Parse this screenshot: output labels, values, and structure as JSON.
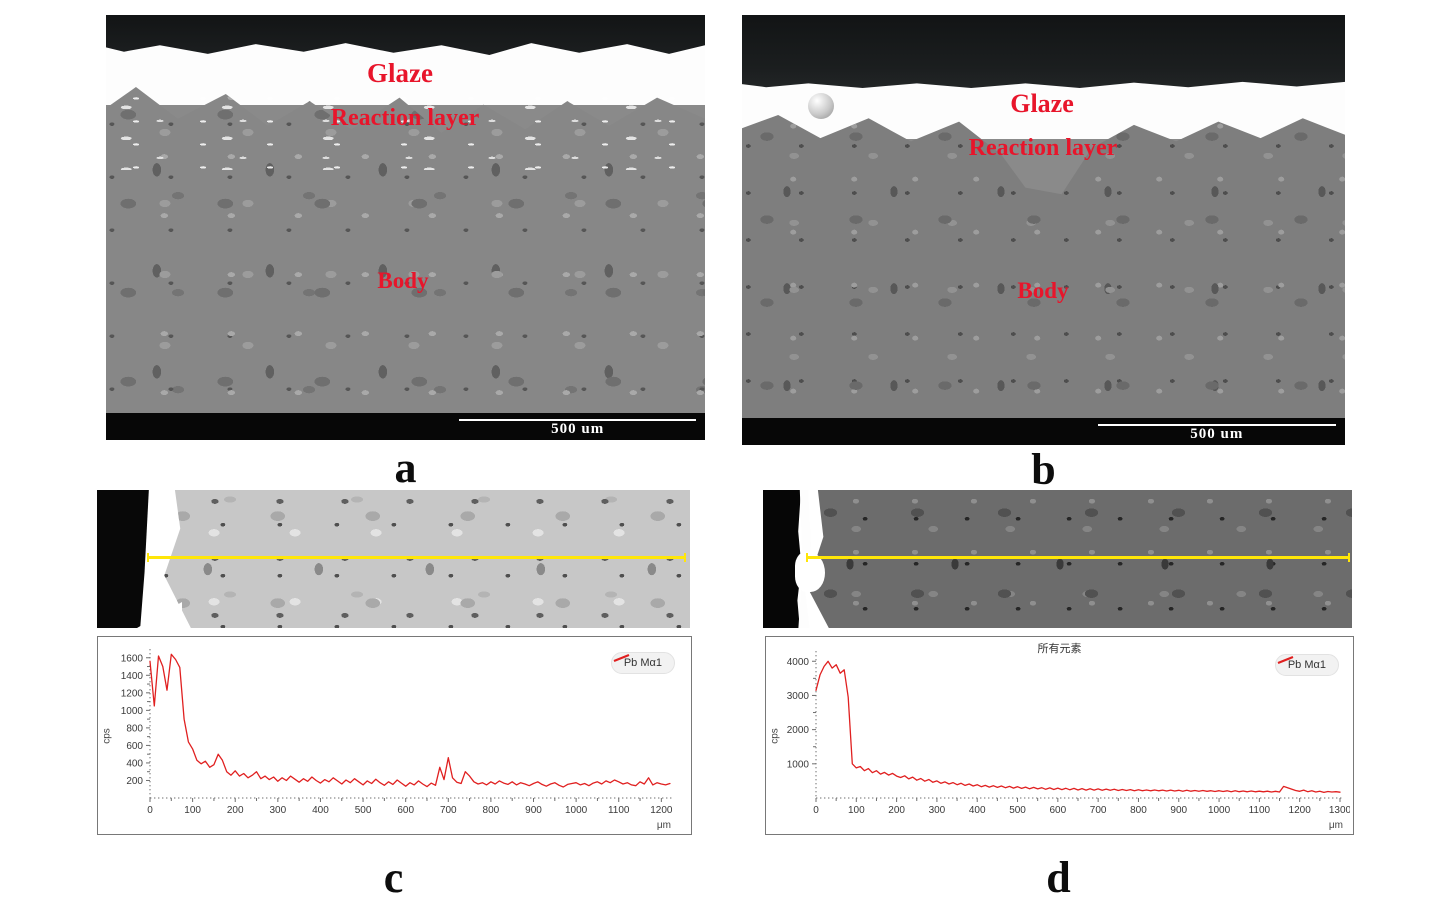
{
  "colors": {
    "annotation_red": "#e8152b",
    "series_red": "#e02020",
    "scan_line_yellow": "#ffe608",
    "scale_bar_bg": "#070707",
    "chart_border": "#787878"
  },
  "panels": {
    "a": {
      "label": "a",
      "glaze": "Glaze",
      "reaction_layer": "Reaction layer",
      "body": "Body",
      "scale_text": "500 um"
    },
    "b": {
      "label": "b",
      "glaze": "Glaze",
      "reaction_layer": "Reaction layer",
      "body": "Body",
      "scale_text": "500 um"
    },
    "c": {
      "label": "c"
    },
    "d": {
      "label": "d"
    }
  },
  "charts": {
    "c": {
      "ylabel": "cps",
      "x_unit": "μm",
      "legend_label": "Pb Mα1",
      "title": ""
    },
    "d": {
      "ylabel": "cps",
      "x_unit": "μm",
      "legend_label": "Pb Mα1",
      "title": "所有元素"
    }
  },
  "chart_data": [
    {
      "id": "c",
      "type": "line",
      "title": "",
      "xlabel": "μm",
      "ylabel": "cps",
      "xlim": [
        0,
        1225
      ],
      "ylim": [
        0,
        1700
      ],
      "xticks": [
        0,
        100,
        200,
        300,
        400,
        500,
        600,
        700,
        800,
        900,
        1000,
        1100,
        1200
      ],
      "yticks": [
        200,
        400,
        600,
        800,
        1000,
        1200,
        1400,
        1600
      ],
      "grid": false,
      "legend_position": "top-right",
      "x_start": 0,
      "x_step": 10,
      "series": [
        {
          "name": "Pb Mα1",
          "color": "#e02020",
          "values": [
            1560,
            1050,
            1620,
            1500,
            1230,
            1640,
            1580,
            1490,
            900,
            640,
            560,
            430,
            390,
            420,
            350,
            380,
            500,
            430,
            300,
            260,
            310,
            250,
            280,
            230,
            260,
            300,
            220,
            250,
            210,
            240,
            190,
            230,
            200,
            250,
            215,
            180,
            220,
            190,
            240,
            200,
            170,
            210,
            185,
            230,
            195,
            160,
            205,
            175,
            220,
            185,
            150,
            195,
            165,
            215,
            175,
            145,
            185,
            155,
            205,
            170,
            135,
            175,
            150,
            195,
            160,
            130,
            170,
            145,
            350,
            210,
            460,
            230,
            180,
            165,
            300,
            250,
            185,
            160,
            175,
            150,
            185,
            160,
            195,
            170,
            155,
            185,
            150,
            175,
            160,
            140,
            165,
            185,
            155,
            135,
            160,
            175,
            145,
            125,
            155,
            165,
            175,
            150,
            165,
            140,
            170,
            185,
            160,
            195,
            175,
            205,
            185,
            160,
            175,
            150,
            140,
            185,
            160,
            230,
            150,
            175,
            160,
            150,
            165
          ]
        }
      ]
    },
    {
      "id": "d",
      "type": "line",
      "title": "所有元素",
      "xlabel": "μm",
      "ylabel": "cps",
      "xlim": [
        0,
        1305
      ],
      "ylim": [
        0,
        4300
      ],
      "xticks": [
        0,
        100,
        200,
        300,
        400,
        500,
        600,
        700,
        800,
        900,
        1000,
        1100,
        1200,
        1300
      ],
      "yticks": [
        1000,
        2000,
        3000,
        4000
      ],
      "grid": false,
      "legend_position": "top-right",
      "x_start": 0,
      "x_step": 10,
      "series": [
        {
          "name": "Pb Mα1",
          "color": "#e02020",
          "values": [
            3150,
            3600,
            3850,
            4000,
            3800,
            3900,
            3650,
            3750,
            2950,
            1000,
            880,
            920,
            800,
            860,
            740,
            800,
            700,
            750,
            670,
            720,
            640,
            600,
            650,
            560,
            610,
            520,
            570,
            490,
            540,
            460,
            500,
            430,
            470,
            410,
            450,
            390,
            430,
            370,
            410,
            350,
            390,
            330,
            370,
            320,
            360,
            310,
            350,
            300,
            340,
            290,
            330,
            280,
            320,
            270,
            310,
            265,
            300,
            255,
            295,
            250,
            290,
            245,
            285,
            240,
            280,
            235,
            275,
            230,
            270,
            230,
            265,
            225,
            260,
            225,
            255,
            220,
            250,
            220,
            245,
            215,
            240,
            215,
            235,
            210,
            235,
            210,
            230,
            205,
            230,
            205,
            225,
            200,
            225,
            200,
            220,
            195,
            220,
            195,
            215,
            190,
            215,
            190,
            210,
            185,
            210,
            185,
            205,
            180,
            205,
            180,
            200,
            180,
            200,
            175,
            195,
            175,
            340,
            300,
            260,
            220,
            195,
            230,
            185,
            210,
            175,
            200,
            165,
            190,
            175,
            185,
            170
          ]
        }
      ]
    }
  ]
}
